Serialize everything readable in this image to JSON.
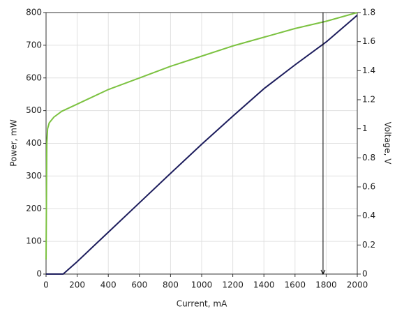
{
  "chart_data": {
    "type": "line",
    "x_label": "Current, mA",
    "y_label": "Power, mW",
    "y2_label": "Voltage, V",
    "xlim": [
      0,
      2000
    ],
    "xticks": [
      0,
      200,
      400,
      600,
      800,
      1000,
      1200,
      1400,
      1600,
      1800,
      2000
    ],
    "ylim": [
      0,
      800
    ],
    "yticks": [
      0,
      100,
      200,
      300,
      400,
      500,
      600,
      700,
      800
    ],
    "y2lim": [
      0,
      1.8
    ],
    "y2ticks": [
      0,
      0.2,
      0.4,
      0.6,
      0.8,
      1,
      1.2,
      1.4,
      1.6,
      1.8
    ],
    "grid": true,
    "cursor_x": 1780,
    "series": [
      {
        "name": "Power",
        "color": "#1c1c5c",
        "x": [
          0,
          110,
          200,
          400,
          600,
          800,
          1000,
          1200,
          1400,
          1600,
          1800,
          2000
        ],
        "values": [
          0,
          0,
          38,
          128,
          218,
          308,
          397,
          483,
          567,
          640,
          710,
          792
        ]
      },
      {
        "name": "Voltage",
        "color": "#7cc241",
        "axis": "y2",
        "x": [
          0,
          5,
          10,
          20,
          50,
          100,
          200,
          400,
          600,
          800,
          1000,
          1200,
          1400,
          1600,
          1800,
          2000
        ],
        "values": [
          0.1,
          0.9,
          1.0,
          1.04,
          1.08,
          1.12,
          1.17,
          1.27,
          1.35,
          1.43,
          1.5,
          1.57,
          1.63,
          1.69,
          1.74,
          1.8
        ]
      }
    ]
  }
}
